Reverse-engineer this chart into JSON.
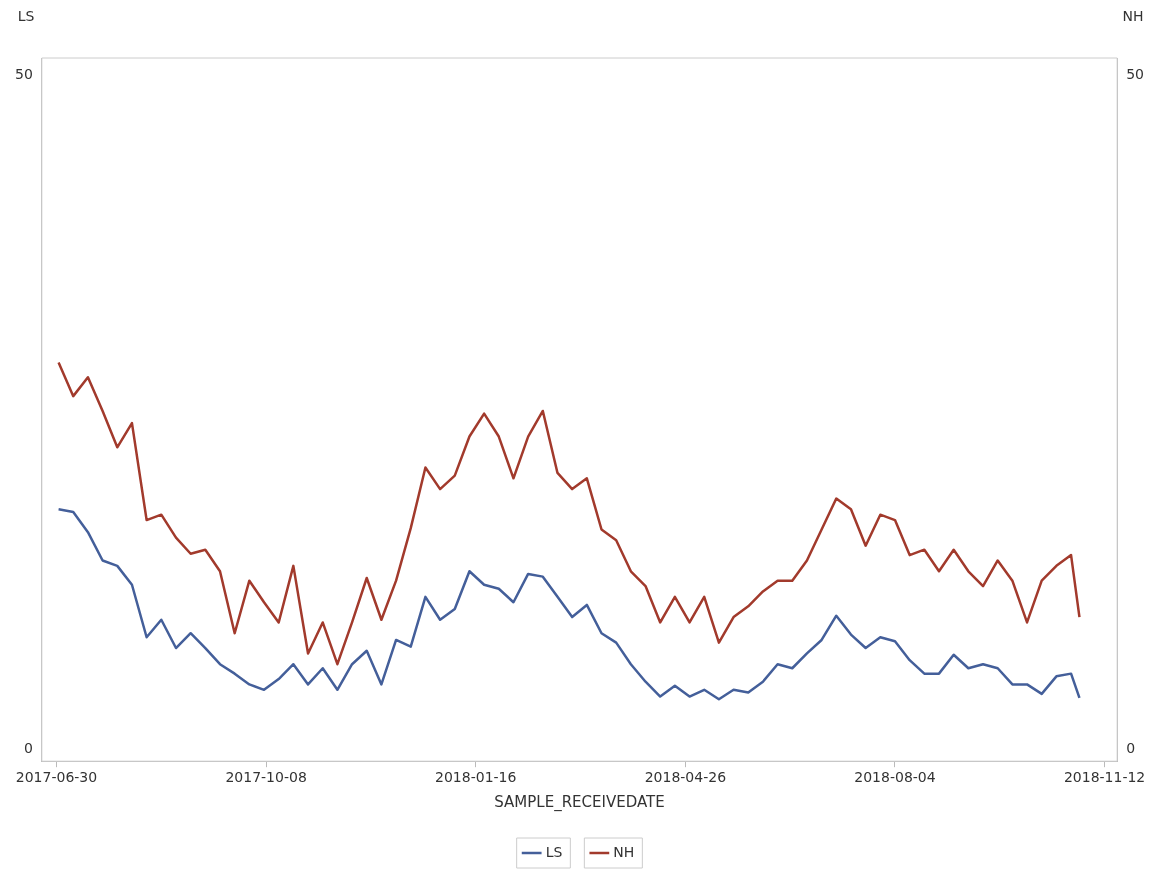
{
  "chart_data": {
    "type": "line",
    "xlabel": "SAMPLE_RECEIVEDATE",
    "ylabel": "LS",
    "y2label": "NH",
    "x": [
      "2017-07-01",
      "2017-07-08",
      "2017-07-15",
      "2017-07-22",
      "2017-07-29",
      "2017-08-05",
      "2017-08-12",
      "2017-08-19",
      "2017-08-26",
      "2017-09-02",
      "2017-09-09",
      "2017-09-16",
      "2017-09-23",
      "2017-09-30",
      "2017-10-07",
      "2017-10-14",
      "2017-10-21",
      "2017-10-28",
      "2017-11-04",
      "2017-11-11",
      "2017-11-18",
      "2017-11-25",
      "2017-12-02",
      "2017-12-09",
      "2017-12-16",
      "2017-12-23",
      "2017-12-30",
      "2018-01-06",
      "2018-01-13",
      "2018-01-20",
      "2018-01-27",
      "2018-02-03",
      "2018-02-10",
      "2018-02-17",
      "2018-02-24",
      "2018-03-03",
      "2018-03-10",
      "2018-03-17",
      "2018-03-24",
      "2018-03-31",
      "2018-04-07",
      "2018-04-14",
      "2018-04-21",
      "2018-04-28",
      "2018-05-05",
      "2018-05-12",
      "2018-05-19",
      "2018-05-26",
      "2018-06-02",
      "2018-06-09",
      "2018-06-16",
      "2018-06-23",
      "2018-06-30",
      "2018-07-07",
      "2018-07-14",
      "2018-07-21",
      "2018-07-28",
      "2018-08-04",
      "2018-08-11",
      "2018-08-18",
      "2018-08-25",
      "2018-09-01",
      "2018-09-08",
      "2018-09-15",
      "2018-09-22",
      "2018-09-29",
      "2018-10-06",
      "2018-10-13",
      "2018-10-20",
      "2018-10-27",
      "2018-10-31"
    ],
    "series": [
      {
        "name": "LS",
        "color": "#445f9a",
        "values": [
          17.8,
          17.6,
          16.1,
          14.0,
          13.6,
          12.2,
          8.3,
          9.6,
          7.5,
          8.6,
          7.5,
          6.3,
          5.6,
          4.8,
          4.4,
          5.2,
          6.3,
          4.8,
          6.0,
          4.4,
          6.3,
          7.3,
          4.8,
          8.1,
          7.6,
          11.3,
          9.6,
          10.4,
          13.2,
          12.2,
          11.9,
          10.9,
          13.0,
          12.8,
          11.3,
          9.8,
          10.7,
          8.6,
          7.9,
          6.3,
          5.0,
          3.9,
          4.7,
          3.9,
          4.4,
          3.7,
          4.4,
          4.2,
          5.0,
          6.3,
          6.0,
          7.1,
          8.1,
          9.9,
          8.5,
          7.5,
          8.3,
          8.0,
          6.6,
          5.6,
          5.6,
          7.0,
          6.0,
          6.3,
          6.0,
          4.8,
          4.8,
          4.1,
          5.4,
          5.6,
          3.8
        ]
      },
      {
        "name": "NH",
        "color": "#a23a2c",
        "axis": "y2",
        "values": [
          28.7,
          26.2,
          27.6,
          25.1,
          22.4,
          24.2,
          17.0,
          17.4,
          15.7,
          14.5,
          14.8,
          13.2,
          8.6,
          12.5,
          10.9,
          9.4,
          13.6,
          7.1,
          9.4,
          6.3,
          9.4,
          12.7,
          9.6,
          12.5,
          16.4,
          20.9,
          19.3,
          20.3,
          23.2,
          24.9,
          23.2,
          20.1,
          23.2,
          25.1,
          20.5,
          19.3,
          20.1,
          16.3,
          15.5,
          13.2,
          12.1,
          9.4,
          11.3,
          9.4,
          11.3,
          7.9,
          9.8,
          10.6,
          11.7,
          12.5,
          12.5,
          14.0,
          16.3,
          18.6,
          17.8,
          15.1,
          17.4,
          17.0,
          14.4,
          14.8,
          13.2,
          14.8,
          13.2,
          12.1,
          14.0,
          12.5,
          9.4,
          12.5,
          13.6,
          14.4,
          9.8
        ]
      }
    ],
    "xlim": [
      "2017-06-23",
      "2018-11-18"
    ],
    "xticks": [
      "2017-06-30",
      "2017-10-08",
      "2018-01-16",
      "2018-04-26",
      "2018-08-04",
      "2018-11-12"
    ],
    "ylim": [
      -0.9,
      51.3
    ],
    "yticks": [
      0,
      50
    ],
    "y2lim": [
      -0.9,
      51.3
    ],
    "y2ticks": [
      0,
      50
    ],
    "grid": false,
    "legend": "bottom",
    "marker": "none",
    "line_style": "solid"
  }
}
